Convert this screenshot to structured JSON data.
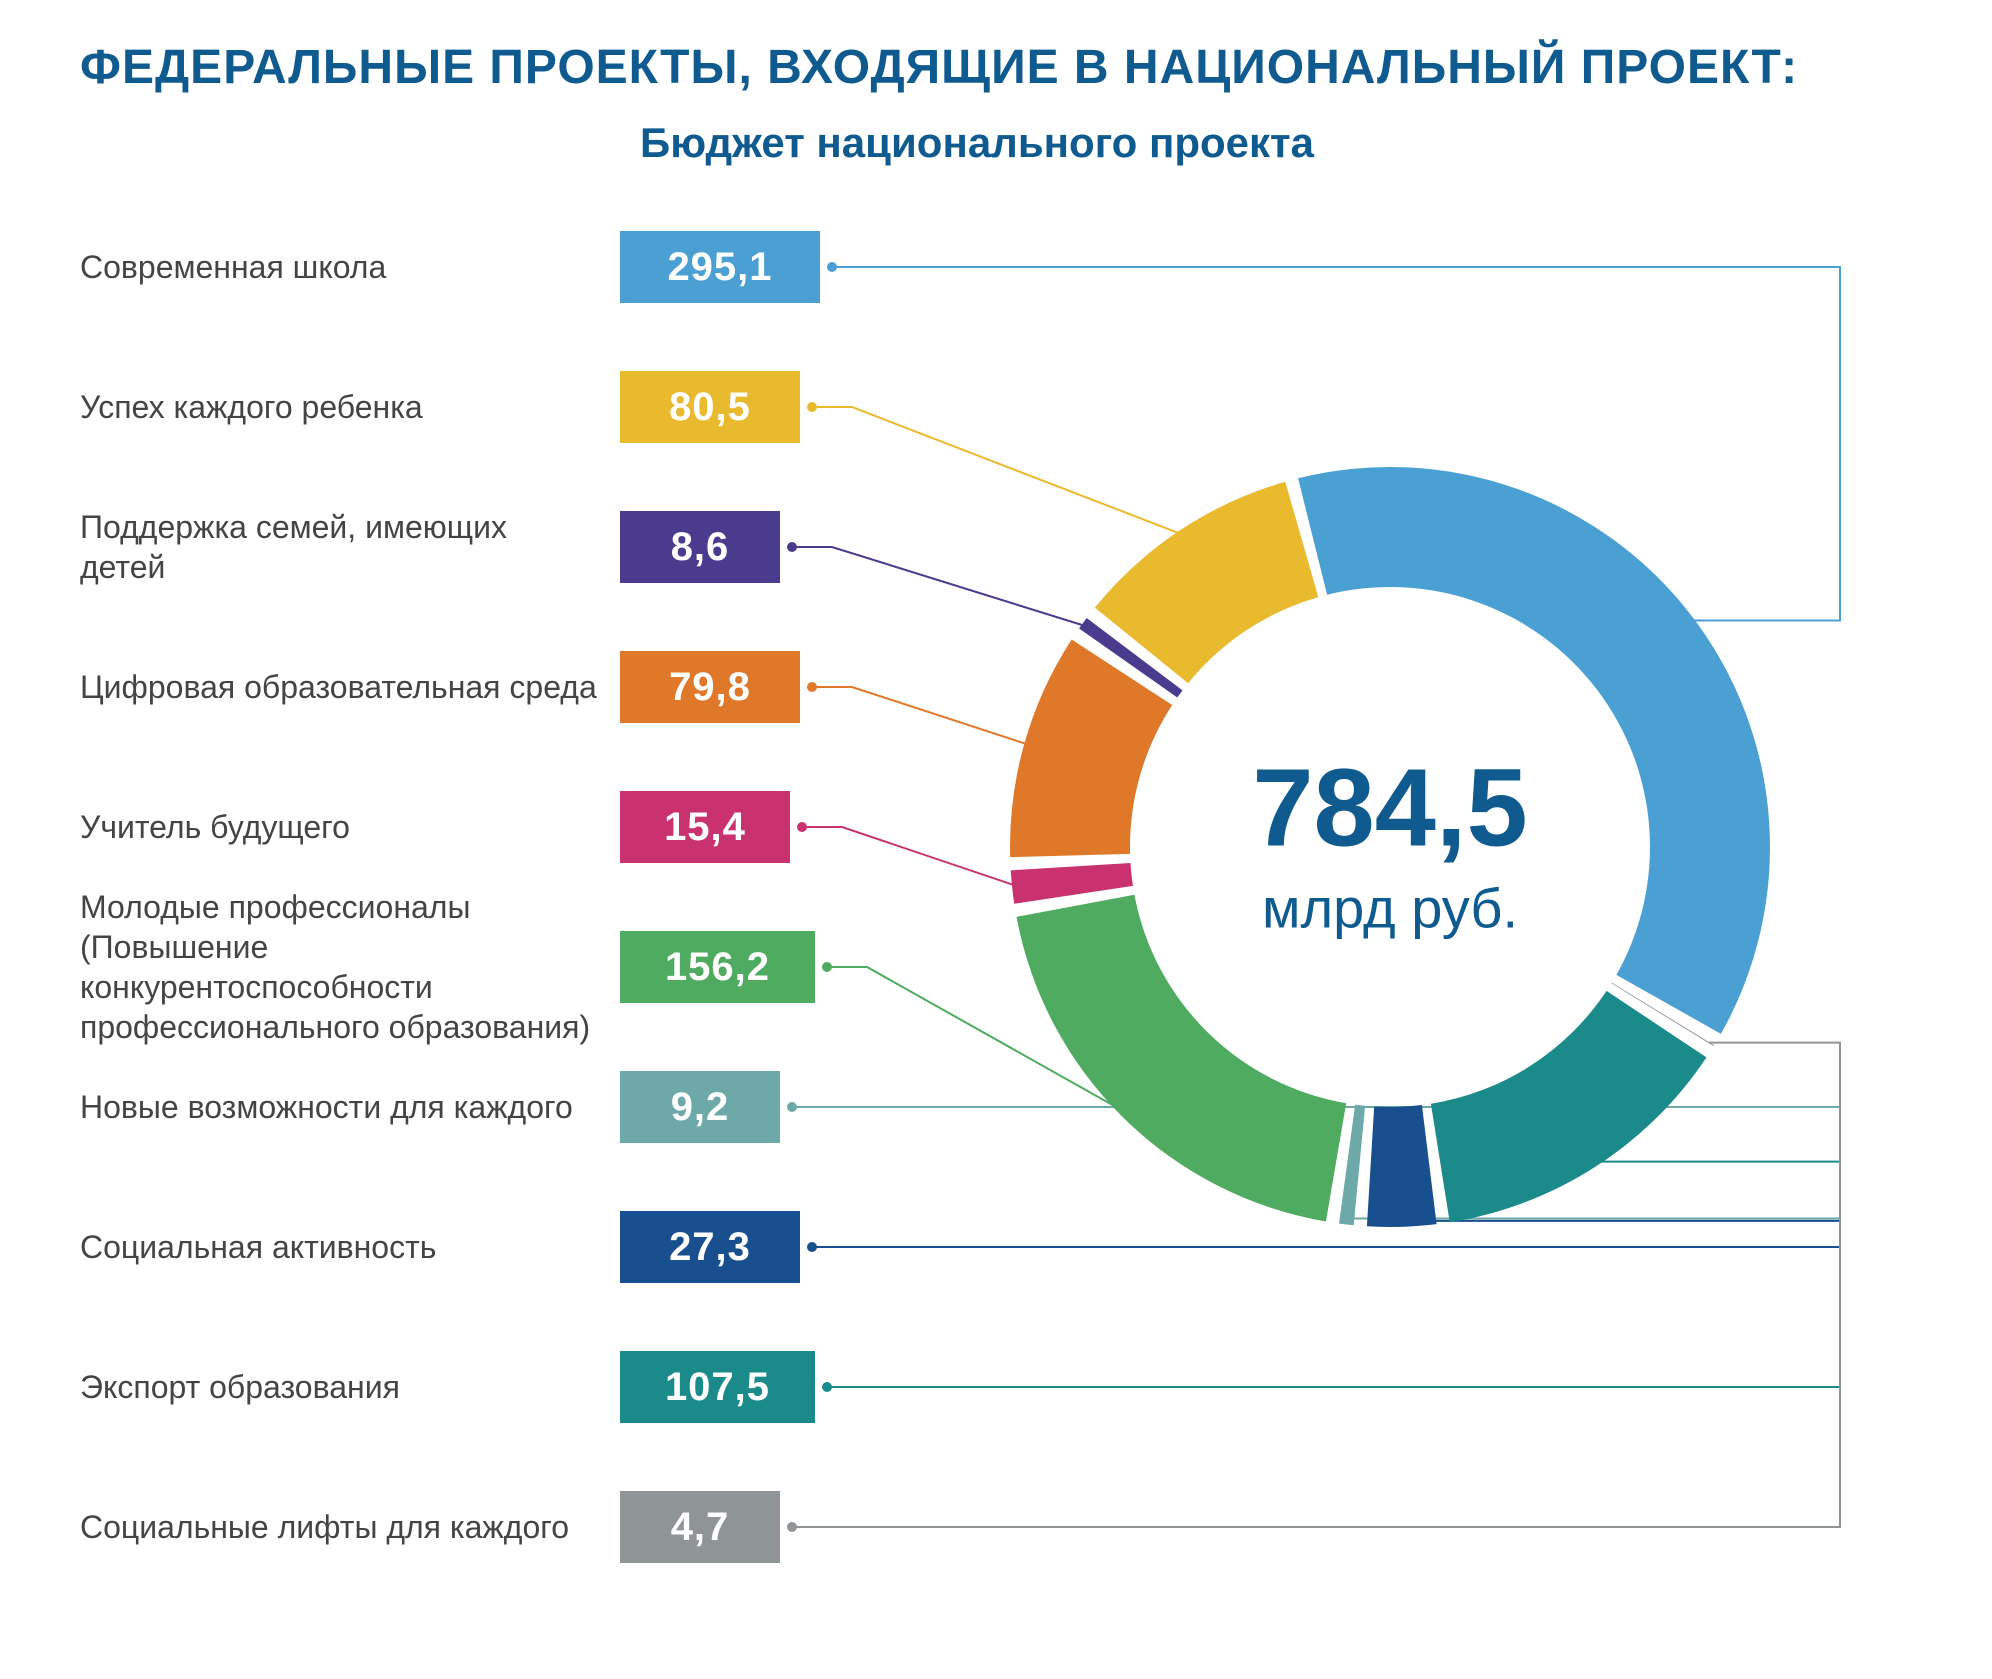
{
  "title": "ФЕДЕРАЛЬНЫЕ ПРОЕКТЫ, ВХОДЯЩИЕ В НАЦИОНАЛЬНЫЙ ПРОЕКТ:",
  "subtitle": "Бюджет национального проекта",
  "total_value": "784,5",
  "total_unit": "млрд руб.",
  "chart": {
    "type": "donut",
    "outer_radius": 380,
    "inner_radius": 260,
    "gap_degrees": 2,
    "background_color": "#ffffff",
    "center_text_color": "#0f5b8f",
    "title_color": "#0f5b8f",
    "label_color": "#444444",
    "badge_text_color": "#ffffff",
    "title_fontsize": 48,
    "subtitle_fontsize": 42,
    "label_fontsize": 32,
    "badge_fontsize": 40,
    "total_fontsize": 110,
    "unit_fontsize": 56,
    "connector_stroke_width": 2,
    "connector_dot_radius": 5,
    "badge_height": 72
  },
  "items": [
    {
      "label": "Современная школа",
      "value_text": "295,1",
      "value": 295.1,
      "color": "#4aa0d3",
      "badge_width": 200
    },
    {
      "label": "Успех каждого ребенка",
      "value_text": "80,5",
      "value": 80.5,
      "color": "#e9b92e",
      "badge_width": 180
    },
    {
      "label": "Поддержка семей, имеющих детей",
      "value_text": "8,6",
      "value": 8.6,
      "color": "#4b3b8f",
      "badge_width": 160
    },
    {
      "label": "Цифровая образовательная среда",
      "value_text": "79,8",
      "value": 79.8,
      "color": "#e0782a",
      "badge_width": 180
    },
    {
      "label": "Учитель будущего",
      "value_text": "15,4",
      "value": 15.4,
      "color": "#c9316f",
      "badge_width": 170
    },
    {
      "label": "Молодые профессионалы (Повышение конкурентоспособности профессионального образования)",
      "value_text": "156,2",
      "value": 156.2,
      "color": "#4fab5f",
      "badge_width": 195
    },
    {
      "label": "Новые возможности для каждого",
      "value_text": "9,2",
      "value": 9.2,
      "color": "#6da9a8",
      "badge_width": 160
    },
    {
      "label": "Социальная активность",
      "value_text": "27,3",
      "value": 27.3,
      "color": "#184f8e",
      "badge_width": 180
    },
    {
      "label": "Экспорт образования",
      "value_text": "107,5",
      "value": 107.5,
      "color": "#1a8a8a",
      "badge_width": 195
    },
    {
      "label": "Социальные лифты для каждого",
      "value_text": "4,7",
      "value": 4.7,
      "color": "#8f9497",
      "badge_width": 160
    }
  ]
}
